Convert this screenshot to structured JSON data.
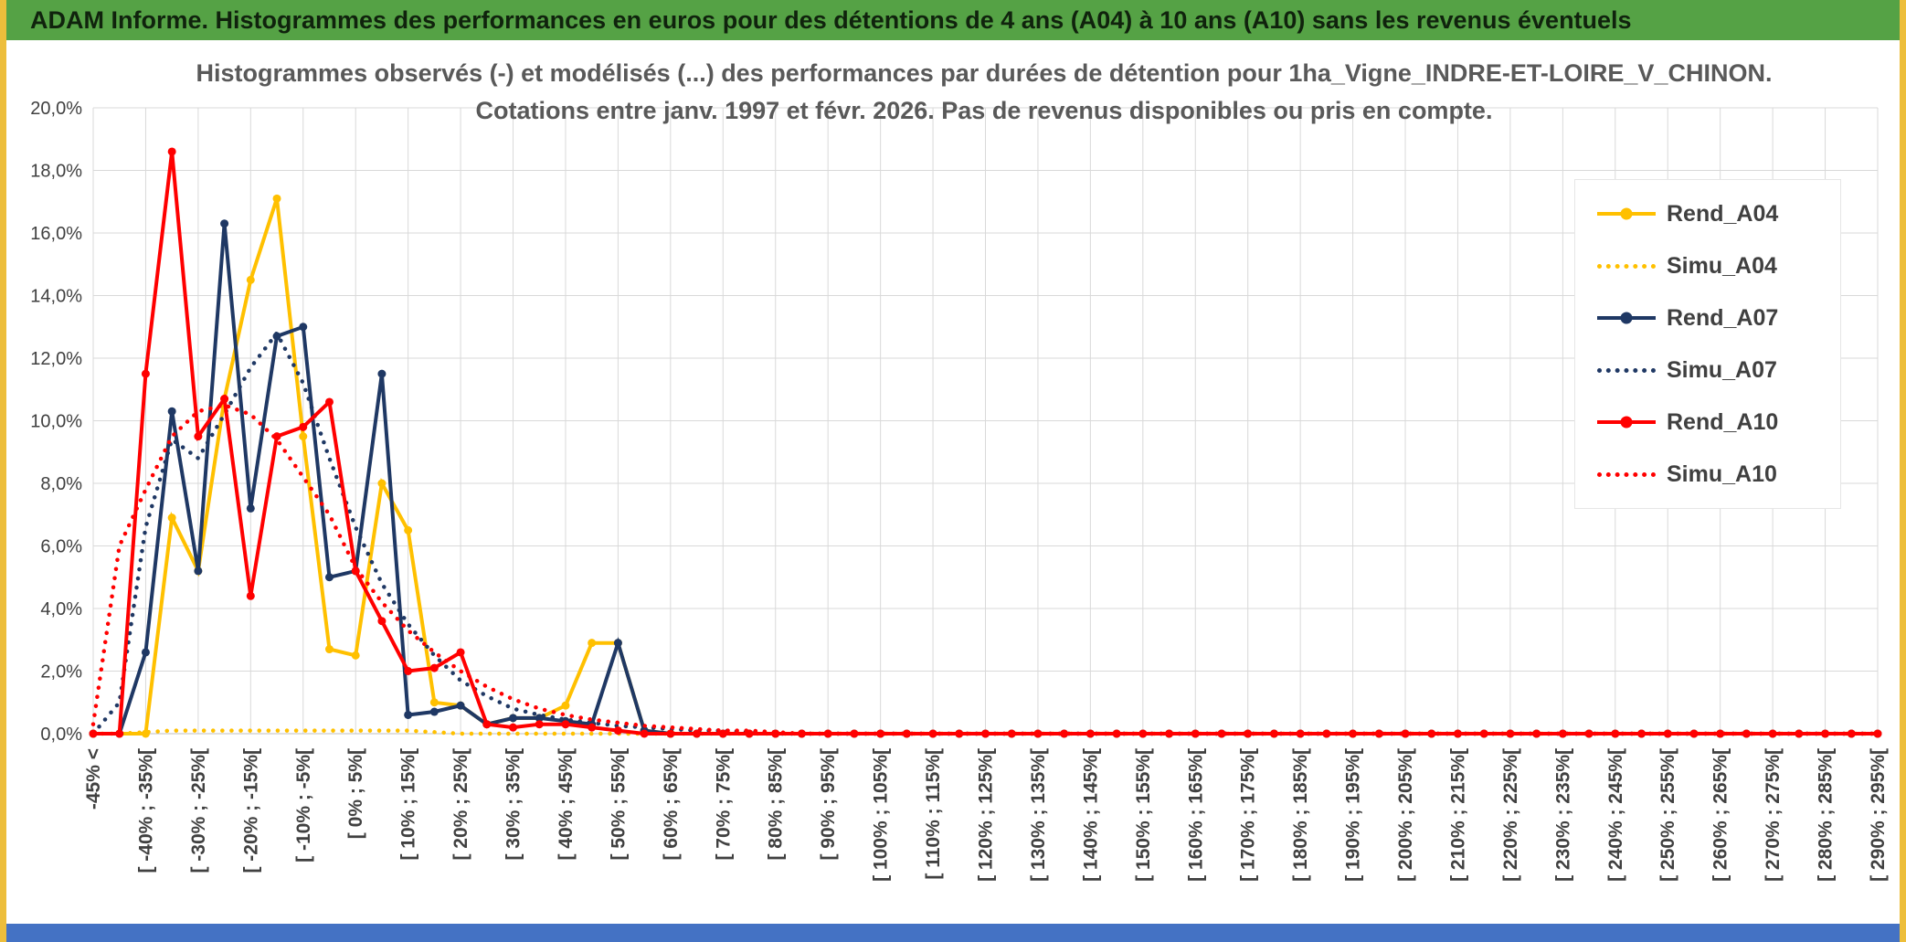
{
  "window": {
    "header_bg": "#55A245",
    "frame_color": "#EDBE3B",
    "footer_color": "#4472C4"
  },
  "header": {
    "title": "ADAM Informe. Histogrammes des performances en euros pour des détentions de 4 ans (A04) à 10 ans (A10) sans les revenus éventuels"
  },
  "chart_data": {
    "type": "line",
    "title_lines": [
      "Histogrammes observés (-) et modélisés (...) des performances par durées de détention pour 1ha_Vigne_INDRE-ET-LOIRE_V_CHINON.",
      "Cotations entre janv. 1997 et févr. 2026. Pas de revenus disponibles ou pris en compte."
    ],
    "ylim": [
      0,
      20
    ],
    "y_tick_labels": [
      "0,0%",
      "2,0%",
      "4,0%",
      "6,0%",
      "8,0%",
      "10,0%",
      "12,0%",
      "14,0%",
      "16,0%",
      "18,0%",
      "20,0%"
    ],
    "n_points": 69,
    "x_tick_every": 2,
    "x_tick_labels": [
      "-45% <",
      "[ -40% ; -35%[",
      "[ -30% ; -25%[",
      "[ -20% ; -15%[",
      "[ -10% ; -5%[",
      "[ 0% ; 5%[",
      "[ 10% ; 15%[",
      "[ 20% ; 25%[",
      "[ 30% ; 35%[",
      "[ 40% ; 45%[",
      "[ 50% ; 55%[",
      "[ 60% ; 65%[",
      "[ 70% ; 75%[",
      "[ 80% ; 85%[",
      "[ 90% ; 95%[",
      "[ 100% ; 105%[",
      "[ 110% ; 115%[",
      "[ 120% ; 125%[",
      "[ 130% ; 135%[",
      "[ 140% ; 145%[",
      "[ 150% ; 155%[",
      "[ 160% ; 165%[",
      "[ 170% ; 175%[",
      "[ 180% ; 185%[",
      "[ 190% ; 195%[",
      "[ 200% ; 205%[",
      "[ 210% ; 215%[",
      "[ 220% ; 225%[",
      "[ 230% ; 235%[",
      "[ 240% ; 245%[",
      "[ 250% ; 255%[",
      "[ 260% ; 265%[",
      "[ 270% ; 275%[",
      "[ 280% ; 285%[",
      "[ 290% ; 295%["
    ],
    "grid": true,
    "legend_position": "right",
    "series": [
      {
        "name": "Rend_A04",
        "color": "#FFC000",
        "style": "solid",
        "values": [
          0,
          0,
          0,
          6.9,
          5.2,
          10.7,
          14.5,
          17.1,
          9.5,
          2.7,
          2.5,
          8,
          6.5,
          1,
          0.9,
          0.3,
          0.5,
          0.5,
          0.9,
          2.9,
          2.9,
          0.1,
          0,
          0,
          0,
          0,
          0,
          0,
          0,
          0,
          0,
          0,
          0,
          0,
          0,
          0,
          0,
          0,
          0,
          0,
          0,
          0,
          0,
          0,
          0,
          0,
          0,
          0,
          0,
          0,
          0,
          0,
          0,
          0,
          0,
          0,
          0,
          0,
          0,
          0,
          0,
          0,
          0,
          0,
          0,
          0,
          0,
          0,
          0
        ]
      },
      {
        "name": "Simu_A04",
        "color": "#FFC000",
        "style": "dotted",
        "values": [
          0,
          0,
          0.05,
          0.1,
          0.1,
          0.1,
          0.1,
          0.1,
          0.1,
          0.1,
          0.1,
          0.1,
          0.1,
          0.05,
          0,
          0,
          0,
          0,
          0,
          0,
          0,
          0,
          0,
          0,
          0,
          0,
          0,
          0,
          0,
          0,
          0,
          0,
          0,
          0,
          0,
          0,
          0,
          0,
          0,
          0,
          0,
          0,
          0,
          0,
          0,
          0,
          0,
          0,
          0,
          0,
          0,
          0,
          0,
          0,
          0,
          0,
          0,
          0,
          0,
          0,
          0,
          0,
          0,
          0,
          0,
          0,
          0,
          0,
          0
        ]
      },
      {
        "name": "Rend_A07",
        "color": "#1F3864",
        "style": "solid",
        "values": [
          0,
          0,
          2.6,
          10.3,
          5.2,
          16.3,
          7.2,
          12.7,
          13,
          5,
          5.2,
          11.5,
          0.6,
          0.7,
          0.9,
          0.3,
          0.5,
          0.5,
          0.4,
          0.3,
          2.9,
          0.1,
          0,
          0,
          0,
          0,
          0,
          0,
          0,
          0,
          0,
          0,
          0,
          0,
          0,
          0,
          0,
          0,
          0,
          0,
          0,
          0,
          0,
          0,
          0,
          0,
          0,
          0,
          0,
          0,
          0,
          0,
          0,
          0,
          0,
          0,
          0,
          0,
          0,
          0,
          0,
          0,
          0,
          0,
          0,
          0,
          0,
          0,
          0
        ]
      },
      {
        "name": "Simu_A07",
        "color": "#1F3864",
        "style": "dotted",
        "values": [
          0,
          1,
          6.6,
          9.4,
          8.8,
          10.2,
          11.7,
          12.8,
          11.2,
          8.8,
          6.6,
          4.8,
          3.5,
          2.5,
          1.7,
          1.2,
          0.8,
          0.6,
          0.45,
          0.35,
          0.25,
          0.2,
          0.15,
          0.1,
          0.1,
          0.05,
          0,
          0,
          0,
          0,
          0,
          0,
          0,
          0,
          0,
          0,
          0,
          0,
          0,
          0,
          0,
          0,
          0,
          0,
          0,
          0,
          0,
          0,
          0,
          0,
          0,
          0,
          0,
          0,
          0,
          0,
          0,
          0,
          0,
          0,
          0,
          0,
          0,
          0,
          0,
          0,
          0,
          0,
          0
        ]
      },
      {
        "name": "Rend_A10",
        "color": "#FF0000",
        "style": "solid",
        "values": [
          0,
          0,
          11.5,
          18.6,
          9.5,
          10.7,
          4.4,
          9.5,
          9.8,
          10.6,
          5.2,
          3.6,
          2,
          2.1,
          2.6,
          0.3,
          0.2,
          0.3,
          0.3,
          0.2,
          0.1,
          0,
          0,
          0,
          0,
          0,
          0,
          0,
          0,
          0,
          0,
          0,
          0,
          0,
          0,
          0,
          0,
          0,
          0,
          0,
          0,
          0,
          0,
          0,
          0,
          0,
          0,
          0,
          0,
          0,
          0,
          0,
          0,
          0,
          0,
          0,
          0,
          0,
          0,
          0,
          0,
          0,
          0,
          0,
          0,
          0,
          0,
          0,
          0
        ]
      },
      {
        "name": "Simu_A10",
        "color": "#FF0000",
        "style": "dotted",
        "values": [
          0.3,
          6,
          7.8,
          9.5,
          10.3,
          10.5,
          10.2,
          9.4,
          8.2,
          7,
          5.3,
          4.2,
          3.3,
          2.6,
          2,
          1.5,
          1.1,
          0.8,
          0.6,
          0.45,
          0.35,
          0.25,
          0.2,
          0.15,
          0.1,
          0.1,
          0.05,
          0,
          0,
          0,
          0,
          0,
          0,
          0,
          0,
          0,
          0,
          0,
          0,
          0,
          0,
          0,
          0,
          0,
          0,
          0,
          0,
          0,
          0,
          0,
          0,
          0,
          0,
          0,
          0,
          0,
          0,
          0,
          0,
          0,
          0,
          0,
          0,
          0,
          0,
          0,
          0,
          0,
          0
        ]
      }
    ]
  }
}
